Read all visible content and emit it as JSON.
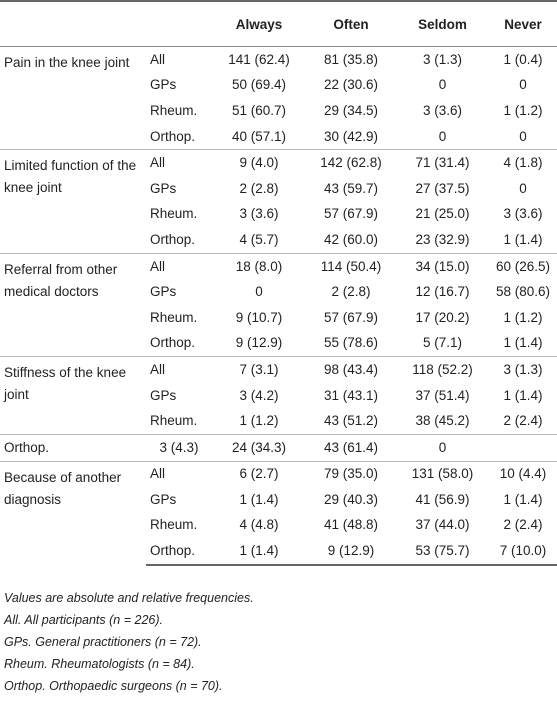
{
  "table": {
    "headers": [
      "",
      "",
      "Always",
      "Often",
      "Seldom",
      "Never"
    ],
    "groups": [
      {
        "condition": "Pain in the knee joint",
        "rows": [
          {
            "group": "All",
            "values": [
              "141 (62.4)",
              "81 (35.8)",
              "3 (1.3)",
              "1 (0.4)"
            ]
          },
          {
            "group": "GPs",
            "values": [
              "50 (69.4)",
              "22 (30.6)",
              "0",
              "0"
            ]
          },
          {
            "group": "Rheum.",
            "values": [
              "51 (60.7)",
              "29 (34.5)",
              "3 (3.6)",
              "1 (1.2)"
            ]
          },
          {
            "group": "Orthop.",
            "values": [
              "40 (57.1)",
              "30 (42.9)",
              "0",
              "0"
            ]
          }
        ]
      },
      {
        "condition": "Limited function of the knee joint",
        "rows": [
          {
            "group": "All",
            "values": [
              "9 (4.0)",
              "142 (62.8)",
              "71 (31.4)",
              "4 (1.8)"
            ]
          },
          {
            "group": "GPs",
            "values": [
              "2 (2.8)",
              "43 (59.7)",
              "27 (37.5)",
              "0"
            ]
          },
          {
            "group": "Rheum.",
            "values": [
              "3 (3.6)",
              "57 (67.9)",
              "21 (25.0)",
              "3 (3.6)"
            ]
          },
          {
            "group": "Orthop.",
            "values": [
              "4 (5.7)",
              "42 (60.0)",
              "23 (32.9)",
              "1 (1.4)"
            ]
          }
        ]
      },
      {
        "condition": "Referral from other medical doctors",
        "rows": [
          {
            "group": "All",
            "values": [
              "18 (8.0)",
              "114 (50.4)",
              "34 (15.0)",
              "60 (26.5)"
            ]
          },
          {
            "group": "GPs",
            "values": [
              "0",
              "2 (2.8)",
              "12 (16.7)",
              "58 (80.6)"
            ]
          },
          {
            "group": "Rheum.",
            "values": [
              "9 (10.7)",
              "57 (67.9)",
              "17 (20.2)",
              "1 (1.2)"
            ]
          },
          {
            "group": "Orthop.",
            "values": [
              "9 (12.9)",
              "55 (78.6)",
              "5 (7.1)",
              "1 (1.4)"
            ]
          }
        ]
      },
      {
        "condition": "Stiffness of the knee joint",
        "rows": [
          {
            "group": "All",
            "values": [
              "7 (3.1)",
              "98 (43.4)",
              "118 (52.2)",
              "3 (1.3)"
            ]
          },
          {
            "group": "GPs",
            "values": [
              "3 (4.2)",
              "31 (43.1)",
              "37 (51.4)",
              "1 (1.4)"
            ]
          },
          {
            "group": "Rheum.",
            "values": [
              "1 (1.2)",
              "43 (51.2)",
              "38 (45.2)",
              "2 (2.4)"
            ]
          }
        ]
      },
      {
        "flat_row": [
          "Orthop.",
          "3 (4.3)",
          "24 (34.3)",
          "43 (61.4)",
          "0",
          ""
        ]
      },
      {
        "condition": "Because of another diagnosis",
        "rows": [
          {
            "group": "All",
            "values": [
              "6 (2.7)",
              "79 (35.0)",
              "131 (58.0)",
              "10 (4.4)"
            ]
          },
          {
            "group": "GPs",
            "values": [
              "1 (1.4)",
              "29 (40.3)",
              "41 (56.9)",
              "1 (1.4)"
            ]
          },
          {
            "group": "Rheum.",
            "values": [
              "4 (4.8)",
              "41 (48.8)",
              "37 (44.0)",
              "2 (2.4)"
            ]
          },
          {
            "group": "Orthop.",
            "values": [
              "1 (1.4)",
              "9 (12.9)",
              "53 (75.7)",
              "7 (10.0)"
            ]
          }
        ]
      }
    ]
  },
  "notes": [
    "Values are absolute and relative frequencies.",
    "All. All participants (n = 226).",
    "GPs. General practitioners (n = 72).",
    "Rheum. Rheumatologists (n = 84).",
    "Orthop. Orthopaedic surgeons (n = 70)."
  ]
}
